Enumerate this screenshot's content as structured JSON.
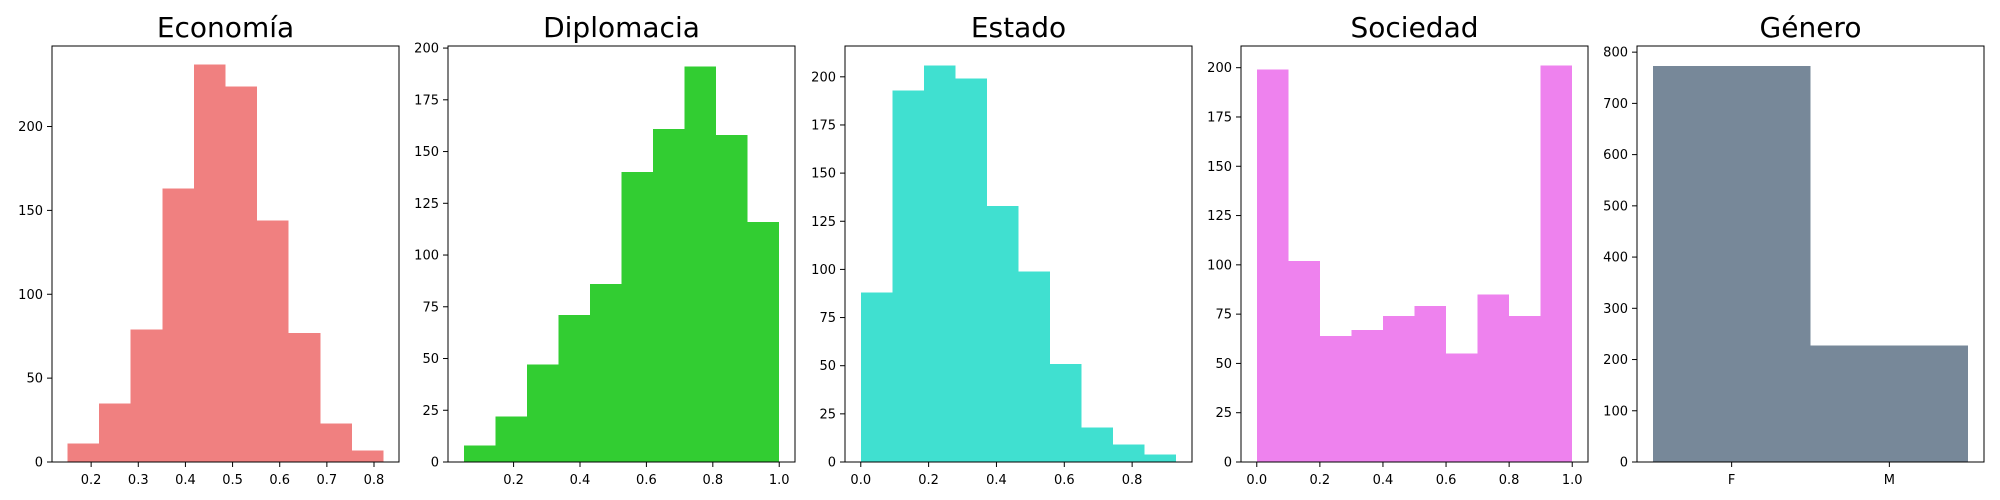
{
  "chart_data": [
    {
      "type": "histogram",
      "title": "Economía",
      "color": "#f08080",
      "bins": [
        {
          "x0": 0.15,
          "x1": 0.217,
          "count": 11
        },
        {
          "x0": 0.217,
          "x1": 0.284,
          "count": 35
        },
        {
          "x0": 0.284,
          "x1": 0.351,
          "count": 79
        },
        {
          "x0": 0.351,
          "x1": 0.418,
          "count": 163
        },
        {
          "x0": 0.418,
          "x1": 0.485,
          "count": 237
        },
        {
          "x0": 0.485,
          "x1": 0.552,
          "count": 224
        },
        {
          "x0": 0.552,
          "x1": 0.619,
          "count": 144
        },
        {
          "x0": 0.619,
          "x1": 0.686,
          "count": 77
        },
        {
          "x0": 0.686,
          "x1": 0.753,
          "count": 23
        },
        {
          "x0": 0.753,
          "x1": 0.82,
          "count": 7
        }
      ],
      "xlim": [
        0.117,
        0.853
      ],
      "ylim": [
        0,
        248
      ],
      "xticks": [
        0.2,
        0.3,
        0.4,
        0.5,
        0.6,
        0.7,
        0.8
      ],
      "xtick_labels": [
        "0.2",
        "0.3",
        "0.4",
        "0.5",
        "0.6",
        "0.7",
        "0.8"
      ],
      "yticks": [
        0,
        50,
        100,
        150,
        200
      ],
      "ytick_labels": [
        "0",
        "50",
        "100",
        "150",
        "200"
      ],
      "grid": false
    },
    {
      "type": "histogram",
      "title": "Diplomacia",
      "color": "#32cd32",
      "bins": [
        {
          "x0": 0.05,
          "x1": 0.145,
          "count": 8
        },
        {
          "x0": 0.145,
          "x1": 0.24,
          "count": 22
        },
        {
          "x0": 0.24,
          "x1": 0.335,
          "count": 47
        },
        {
          "x0": 0.335,
          "x1": 0.43,
          "count": 71
        },
        {
          "x0": 0.43,
          "x1": 0.525,
          "count": 86
        },
        {
          "x0": 0.525,
          "x1": 0.62,
          "count": 140
        },
        {
          "x0": 0.62,
          "x1": 0.715,
          "count": 161
        },
        {
          "x0": 0.715,
          "x1": 0.81,
          "count": 191
        },
        {
          "x0": 0.81,
          "x1": 0.905,
          "count": 158
        },
        {
          "x0": 0.905,
          "x1": 1.0,
          "count": 116
        }
      ],
      "xlim": [
        0.0025,
        1.0475
      ],
      "ylim": [
        0,
        201
      ],
      "xticks": [
        0.2,
        0.4,
        0.6,
        0.8,
        1.0
      ],
      "xtick_labels": [
        "0.2",
        "0.4",
        "0.6",
        "0.8",
        "1.0"
      ],
      "yticks": [
        0,
        25,
        50,
        75,
        100,
        125,
        150,
        175,
        200
      ],
      "ytick_labels": [
        "0",
        "25",
        "50",
        "75",
        "100",
        "125",
        "150",
        "175",
        "200"
      ],
      "grid": false
    },
    {
      "type": "histogram",
      "title": "Estado",
      "color": "#40e0d0",
      "bins": [
        {
          "x0": 0.0,
          "x1": 0.093,
          "count": 88
        },
        {
          "x0": 0.093,
          "x1": 0.186,
          "count": 193
        },
        {
          "x0": 0.186,
          "x1": 0.279,
          "count": 206
        },
        {
          "x0": 0.279,
          "x1": 0.372,
          "count": 199
        },
        {
          "x0": 0.372,
          "x1": 0.465,
          "count": 133
        },
        {
          "x0": 0.465,
          "x1": 0.558,
          "count": 99
        },
        {
          "x0": 0.558,
          "x1": 0.651,
          "count": 51
        },
        {
          "x0": 0.651,
          "x1": 0.744,
          "count": 18
        },
        {
          "x0": 0.744,
          "x1": 0.837,
          "count": 9
        },
        {
          "x0": 0.837,
          "x1": 0.93,
          "count": 4
        }
      ],
      "xlim": [
        -0.0465,
        0.9765
      ],
      "ylim": [
        0,
        216
      ],
      "xticks": [
        0.0,
        0.2,
        0.4,
        0.6,
        0.8
      ],
      "xtick_labels": [
        "0.0",
        "0.2",
        "0.4",
        "0.6",
        "0.8"
      ],
      "yticks": [
        0,
        25,
        50,
        75,
        100,
        125,
        150,
        175,
        200
      ],
      "ytick_labels": [
        "0",
        "25",
        "50",
        "75",
        "100",
        "125",
        "150",
        "175",
        "200"
      ],
      "grid": false
    },
    {
      "type": "histogram",
      "title": "Sociedad",
      "color": "#ee82ee",
      "bins": [
        {
          "x0": 0.0,
          "x1": 0.1,
          "count": 199
        },
        {
          "x0": 0.1,
          "x1": 0.2,
          "count": 102
        },
        {
          "x0": 0.2,
          "x1": 0.3,
          "count": 64
        },
        {
          "x0": 0.3,
          "x1": 0.4,
          "count": 67
        },
        {
          "x0": 0.4,
          "x1": 0.5,
          "count": 74
        },
        {
          "x0": 0.5,
          "x1": 0.6,
          "count": 79
        },
        {
          "x0": 0.6,
          "x1": 0.7,
          "count": 55
        },
        {
          "x0": 0.7,
          "x1": 0.8,
          "count": 85
        },
        {
          "x0": 0.8,
          "x1": 0.9,
          "count": 74
        },
        {
          "x0": 0.9,
          "x1": 1.0,
          "count": 201
        }
      ],
      "xlim": [
        -0.05,
        1.05
      ],
      "ylim": [
        0,
        211
      ],
      "xticks": [
        0.0,
        0.2,
        0.4,
        0.6,
        0.8,
        1.0
      ],
      "xtick_labels": [
        "0.0",
        "0.2",
        "0.4",
        "0.6",
        "0.8",
        "1.0"
      ],
      "yticks": [
        0,
        25,
        50,
        75,
        100,
        125,
        150,
        175,
        200
      ],
      "ytick_labels": [
        "0",
        "25",
        "50",
        "75",
        "100",
        "125",
        "150",
        "175",
        "200"
      ],
      "grid": false
    },
    {
      "type": "histogram",
      "title": "Género",
      "color": "#778899",
      "bins": [
        {
          "x0": 0.0,
          "x1": 0.5,
          "count": 773
        },
        {
          "x0": 0.5,
          "x1": 1.0,
          "count": 227
        }
      ],
      "xlim": [
        -0.05,
        1.05
      ],
      "ylim": [
        0,
        812
      ],
      "xticks": [
        0.25,
        0.75
      ],
      "xtick_labels": [
        "F",
        "M"
      ],
      "yticks": [
        0,
        100,
        200,
        300,
        400,
        500,
        600,
        700,
        800
      ],
      "ytick_labels": [
        "0",
        "100",
        "200",
        "300",
        "400",
        "500",
        "600",
        "700",
        "800"
      ],
      "grid": false
    }
  ]
}
